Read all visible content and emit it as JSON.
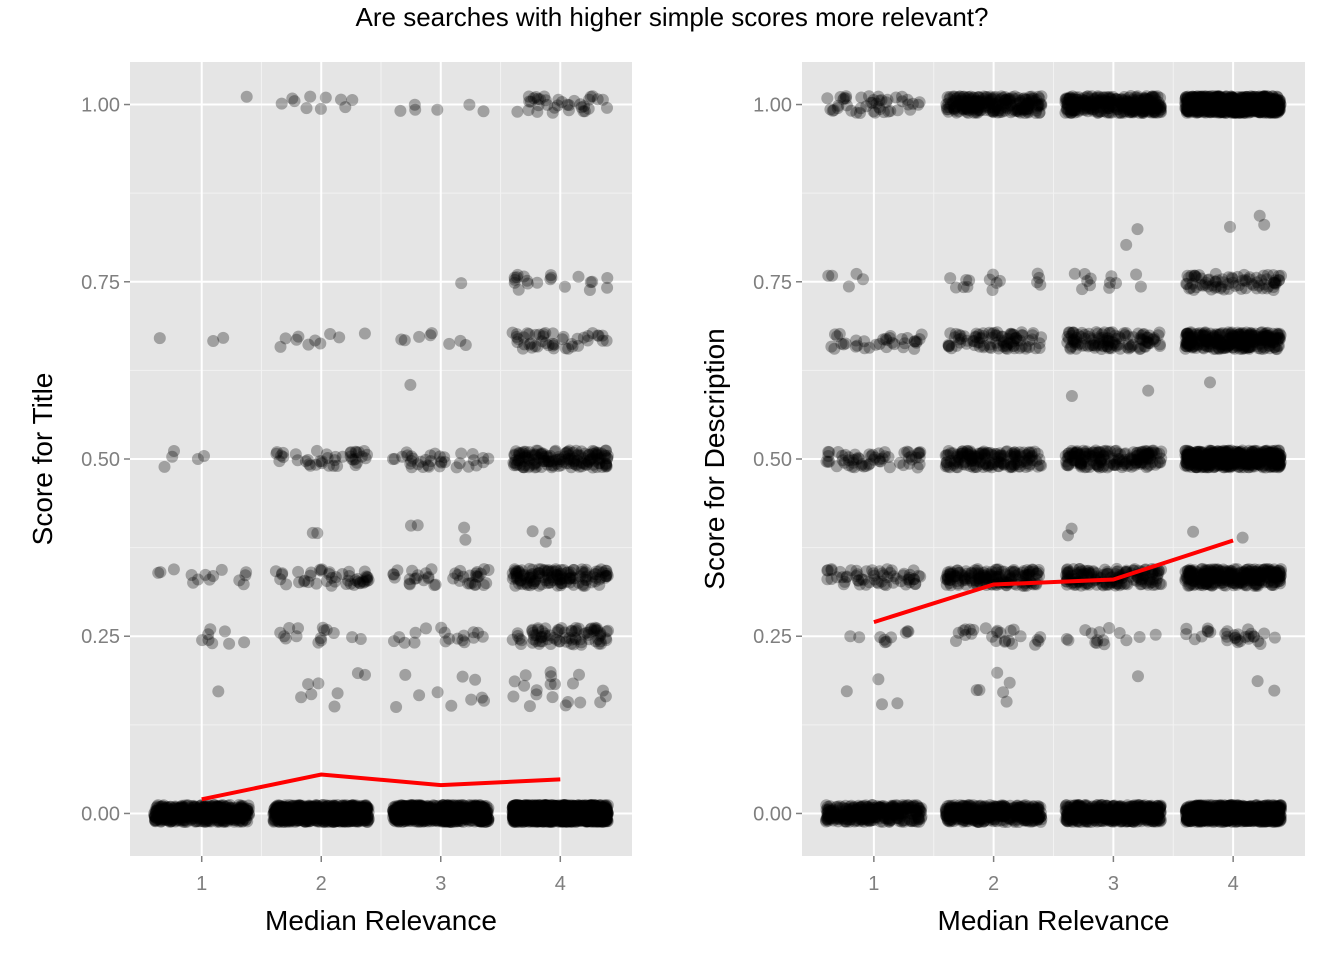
{
  "title": "Are searches with higher simple scores more relevant?",
  "colors": {
    "panel_background": "#e5e5e5",
    "grid": "#ffffff",
    "points": "#000000",
    "trend_line": "#ff0000",
    "tick_text": "#7f7f7f"
  },
  "chart_data": [
    {
      "type": "scatter",
      "xlabel": "Median Relevance",
      "ylabel": "Score for Title",
      "xlim": [
        0.4,
        4.6
      ],
      "ylim": [
        -0.06,
        1.06
      ],
      "x_ticks": [
        1,
        2,
        3,
        4
      ],
      "x_tick_labels": [
        "1",
        "2",
        "3",
        "4"
      ],
      "y_ticks": [
        0,
        0.25,
        0.5,
        0.75,
        1
      ],
      "y_tick_labels": [
        "0.00",
        "0.25",
        "0.50",
        "0.75",
        "1.00"
      ],
      "jitter": "horizontal",
      "point_alpha": 0.3,
      "point_counts": {
        "1": {
          "0": 450,
          "0.25": 8,
          "0.333": 14,
          "0.5": 5,
          "0.667": 3,
          "1": 1,
          "scatter_0.15_0.2": 1
        },
        "2": {
          "0": 700,
          "0.25": 15,
          "0.333": 45,
          "0.5": 40,
          "0.667": 10,
          "1": 10,
          "scatter_0.15_0.2": 8,
          "scatter_0.38_0.41": 2
        },
        "3": {
          "0": 750,
          "0.25": 18,
          "0.333": 40,
          "0.5": 35,
          "0.667": 8,
          "0.75": 1,
          "1": 6,
          "scatter_0.15_0.2": 10,
          "scatter_0.38_0.41": 4,
          "scatter_0.6": 1
        },
        "4": {
          "0": 1600,
          "0.25": 80,
          "0.333": 140,
          "0.5": 160,
          "0.667": 45,
          "0.75": 20,
          "1": 35,
          "scatter_0.15_0.2": 20,
          "scatter_0.38_0.41": 3
        }
      },
      "series": [
        {
          "name": "",
          "type": "line",
          "x": [
            1,
            2,
            3,
            4
          ],
          "y": [
            0.02,
            0.055,
            0.04,
            0.048
          ]
        }
      ]
    },
    {
      "type": "scatter",
      "xlabel": "Median Relevance",
      "ylabel": "Score for Description",
      "xlim": [
        0.4,
        4.6
      ],
      "ylim": [
        -0.06,
        1.06
      ],
      "x_ticks": [
        1,
        2,
        3,
        4
      ],
      "x_tick_labels": [
        "1",
        "2",
        "3",
        "4"
      ],
      "y_ticks": [
        0,
        0.25,
        0.5,
        0.75,
        1
      ],
      "y_tick_labels": [
        "0.00",
        "0.25",
        "0.50",
        "0.75",
        "1.00"
      ],
      "jitter": "horizontal",
      "point_alpha": 0.3,
      "point_counts": {
        "1": {
          "0": 300,
          "0.25": 10,
          "0.333": 60,
          "0.5": 60,
          "0.667": 35,
          "0.75": 5,
          "1": 45,
          "scatter_0.15_0.2": 4
        },
        "2": {
          "0": 400,
          "0.25": 25,
          "0.333": 160,
          "0.5": 160,
          "0.667": 90,
          "0.75": 15,
          "1": 240,
          "scatter_0.15_0.2": 6
        },
        "3": {
          "0": 500,
          "0.25": 15,
          "0.333": 160,
          "0.5": 180,
          "0.667": 120,
          "0.75": 12,
          "1": 320,
          "scatter_0.15_0.2": 1,
          "scatter_0.38_0.41": 2,
          "scatter_0.58_0.6": 2,
          "scatter_0.8_0.85": 2
        },
        "4": {
          "0": 900,
          "0.25": 30,
          "0.333": 300,
          "0.5": 450,
          "0.667": 280,
          "0.75": 80,
          "1": 800,
          "scatter_0.15_0.2": 2,
          "scatter_0.38_0.41": 2,
          "scatter_0.6": 1,
          "scatter_0.8_0.85": 3
        }
      },
      "series": [
        {
          "name": "",
          "type": "line",
          "x": [
            1,
            2,
            3,
            4
          ],
          "y": [
            0.27,
            0.323,
            0.33,
            0.385
          ]
        }
      ]
    }
  ]
}
